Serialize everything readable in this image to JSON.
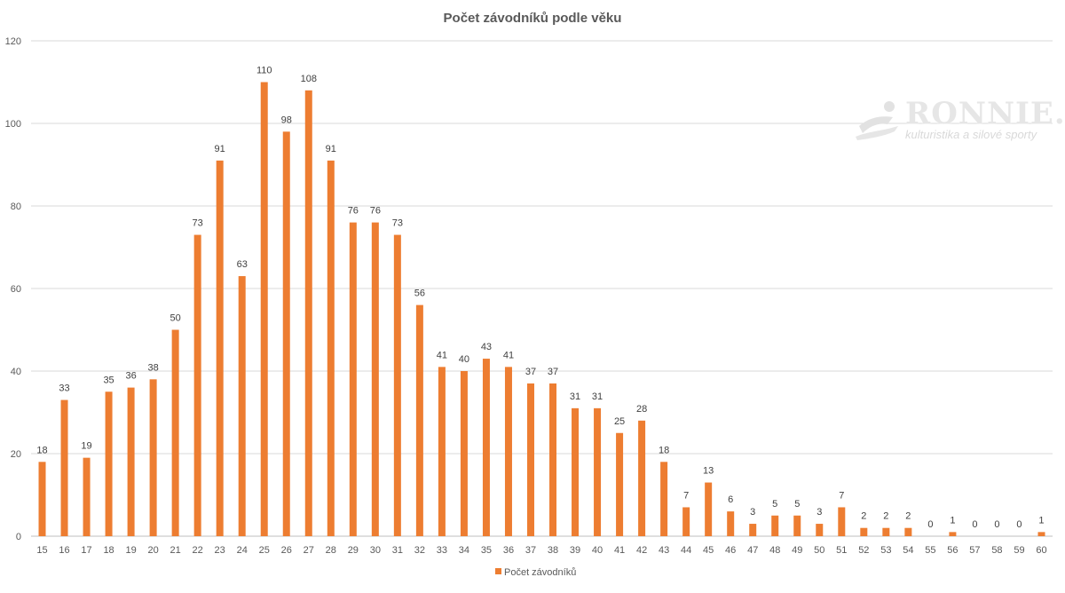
{
  "chart_data": {
    "type": "bar",
    "title": "Počet závodníků podle věku",
    "xlabel": "",
    "ylabel": "",
    "ylim": [
      0,
      120
    ],
    "yticks": [
      0,
      20,
      40,
      60,
      80,
      100,
      120
    ],
    "grid": true,
    "legend_position": "bottom",
    "color": "#ED7D31",
    "categories": [
      "15",
      "16",
      "17",
      "18",
      "19",
      "20",
      "21",
      "22",
      "23",
      "24",
      "25",
      "26",
      "27",
      "28",
      "29",
      "30",
      "31",
      "32",
      "33",
      "34",
      "35",
      "36",
      "37",
      "38",
      "39",
      "40",
      "41",
      "42",
      "43",
      "44",
      "45",
      "46",
      "47",
      "48",
      "49",
      "50",
      "51",
      "52",
      "53",
      "54",
      "55",
      "56",
      "57",
      "58",
      "59",
      "60"
    ],
    "series": [
      {
        "name": "Počet závodníků",
        "values": [
          18,
          33,
          19,
          35,
          36,
          38,
          50,
          73,
          91,
          63,
          110,
          98,
          108,
          91,
          76,
          76,
          73,
          56,
          41,
          40,
          43,
          41,
          37,
          37,
          31,
          31,
          25,
          28,
          18,
          7,
          13,
          6,
          3,
          5,
          5,
          3,
          7,
          2,
          2,
          2,
          0,
          1,
          0,
          0,
          0,
          1
        ]
      }
    ]
  },
  "watermark": {
    "brand": "RONNIE.cz",
    "tagline": "kulturistika a silové sporty"
  }
}
